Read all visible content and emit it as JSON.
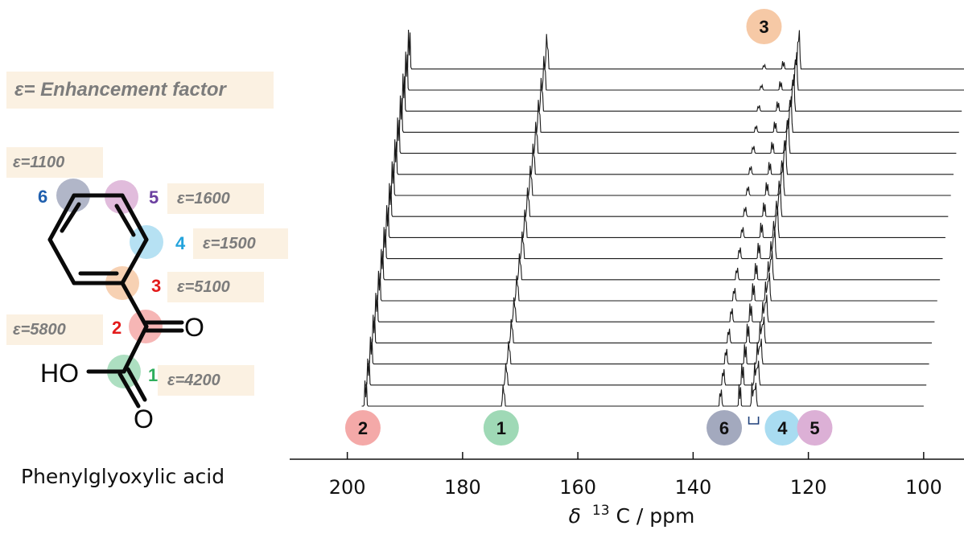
{
  "molecule": {
    "name": "Phenylglyoxylic acid",
    "legend": "ε= Enhancement  factor",
    "atoms": {
      "carbonyl_oxygen": "O",
      "hydroxyl": "HO"
    },
    "sites": [
      {
        "id": "1",
        "color": "#9fd9b6",
        "number_color": "#2fae5c",
        "enhancement": "ε=4200"
      },
      {
        "id": "2",
        "color": "#f4a9a8",
        "number_color": "#e31b1b",
        "enhancement": "ε=5800"
      },
      {
        "id": "3",
        "color": "#f6c9a6",
        "number_color": "#e31b1b",
        "enhancement": "ε=5100"
      },
      {
        "id": "4",
        "color": "#a9dcf1",
        "number_color": "#23a3dc",
        "enhancement": "ε=1500"
      },
      {
        "id": "5",
        "color": "#dcb0d6",
        "number_color": "#6b3fa0",
        "enhancement": "ε=1600"
      },
      {
        "id": "6",
        "color": "#a3a9be",
        "number_color": "#1f5fae",
        "enhancement": "ε=1100"
      }
    ]
  },
  "chart_data": {
    "type": "line",
    "title": "",
    "xlabel": "δ 13C / ppm",
    "xlabel_parts": {
      "delta": "δ",
      "superscript": "13",
      "rest": "C / ppm"
    },
    "xlim": [
      210,
      93
    ],
    "x_reversed": true,
    "x_ticks": [
      200,
      180,
      160,
      140,
      120,
      100
    ],
    "grid": false,
    "stacked_spectra": 17,
    "stack_offset_ppm_per_trace": 0.45,
    "baseline_window_ppm": [
      197.5,
      100
    ],
    "peaks_front_trace_ppm": [
      {
        "site": "2",
        "ppm": 196.8
      },
      {
        "site": "1",
        "ppm": 172.9
      },
      {
        "site": "6",
        "ppm": 135.2
      },
      {
        "site": "4",
        "ppm": 131.9
      },
      {
        "site": "5",
        "ppm": 129.7
      },
      {
        "site": "3",
        "ppm": 129.2
      }
    ],
    "peak_labels": [
      {
        "site": "2",
        "ppm": 197.3,
        "color": "#f4a9a8"
      },
      {
        "site": "1",
        "ppm": 173.3,
        "color": "#9fd9b6"
      },
      {
        "site": "6",
        "ppm": 134.6,
        "color": "#a3a9be"
      },
      {
        "site": "4",
        "ppm": 124.5,
        "color": "#a9dcf1"
      },
      {
        "site": "5",
        "ppm": 118.9,
        "color": "#dcb0d6"
      },
      {
        "site": "3",
        "ppm": 127.7,
        "color": "#f6c9a6",
        "position": "top"
      }
    ],
    "bracket_ppm": 129.5,
    "trace_color": "#1a1a1a"
  }
}
